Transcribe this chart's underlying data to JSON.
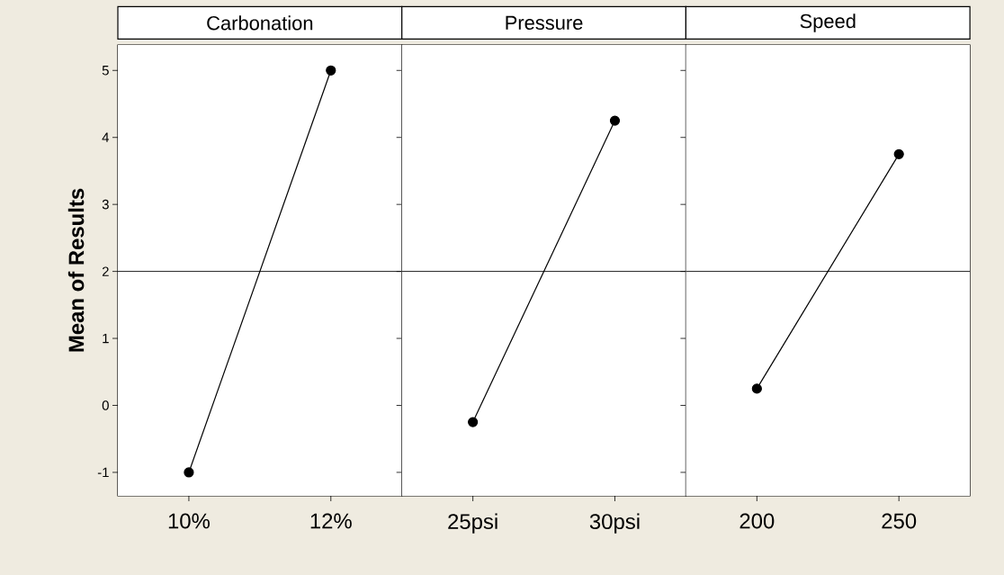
{
  "chart_data": [
    {
      "type": "line",
      "title": "Carbonation",
      "ylabel": "Mean of Results",
      "categories": [
        "10%",
        "12%"
      ],
      "values": [
        -1,
        5
      ],
      "color": "#000000",
      "marker": "circle",
      "ylim": [
        -1.35,
        5.38
      ],
      "yticks": [
        -1,
        0,
        1,
        2,
        3,
        4,
        5
      ],
      "ref_lines": [
        {
          "axis": "y",
          "value": 2
        }
      ]
    },
    {
      "type": "line",
      "title": "Pressure",
      "categories": [
        "25psi",
        "30psi"
      ],
      "values": [
        -0.25,
        4.25
      ],
      "color": "#000000",
      "marker": "circle",
      "ylim": [
        -1.35,
        5.38
      ],
      "yticks": [
        -1,
        0,
        1,
        2,
        3,
        4,
        5
      ],
      "ref_lines": [
        {
          "axis": "y",
          "value": 2
        }
      ],
      "tick_labels": "x"
    },
    {
      "type": "line",
      "title": "Speed",
      "categories": [
        "200",
        "250"
      ],
      "values": [
        0.25,
        3.75
      ],
      "color": "#000000",
      "marker": "circle",
      "ylim": [
        -1.35,
        5.38
      ],
      "yticks": [
        -1,
        0,
        1,
        2,
        3,
        4,
        5
      ],
      "ref_lines": [
        {
          "axis": "y",
          "value": 2
        }
      ],
      "tick_labels": "x"
    }
  ]
}
